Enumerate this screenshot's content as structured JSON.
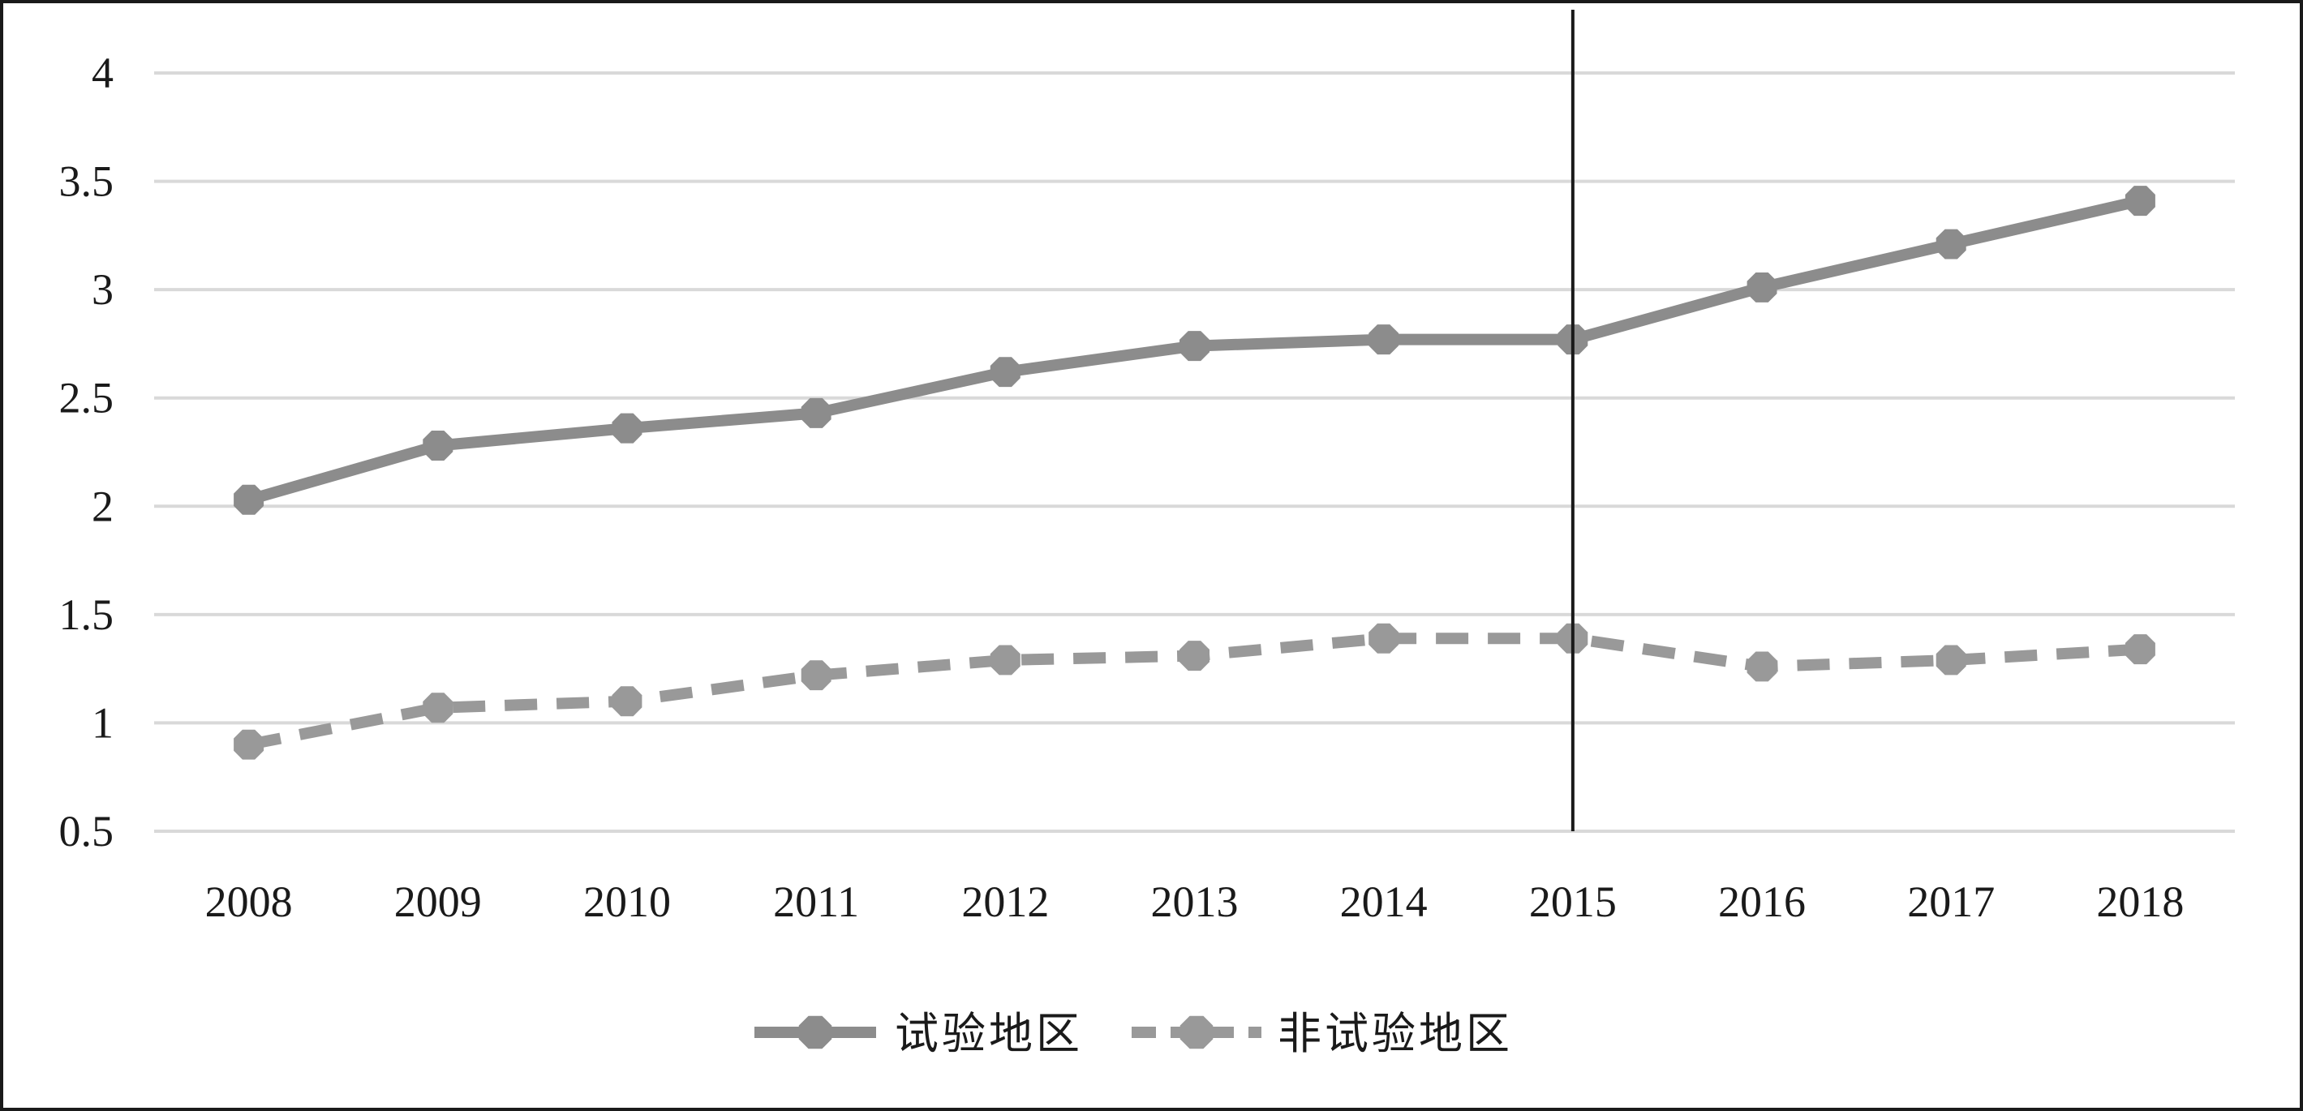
{
  "chart_data": {
    "type": "line",
    "title": "",
    "xlabel": "",
    "ylabel": "",
    "categories": [
      "2008",
      "2009",
      "2010",
      "2011",
      "2012",
      "2013",
      "2014",
      "2015",
      "2016",
      "2017",
      "2018"
    ],
    "ylim": [
      0.5,
      4
    ],
    "yticks": [
      "0.5",
      "1",
      "1.5",
      "2",
      "2.5",
      "3",
      "3.5",
      "4"
    ],
    "grid": true,
    "legend": "bottom-center",
    "reference_line_at": "2015",
    "series": [
      {
        "name": "试验地区",
        "style": "solid",
        "color": "#8c8c8c",
        "values": [
          2.03,
          2.28,
          2.36,
          2.43,
          2.62,
          2.74,
          2.77,
          2.77,
          3.01,
          3.21,
          3.41
        ]
      },
      {
        "name": "非试验地区",
        "style": "dashed",
        "color": "#999999",
        "values": [
          0.9,
          1.07,
          1.1,
          1.22,
          1.29,
          1.31,
          1.39,
          1.39,
          1.26,
          1.29,
          1.34
        ]
      }
    ]
  }
}
